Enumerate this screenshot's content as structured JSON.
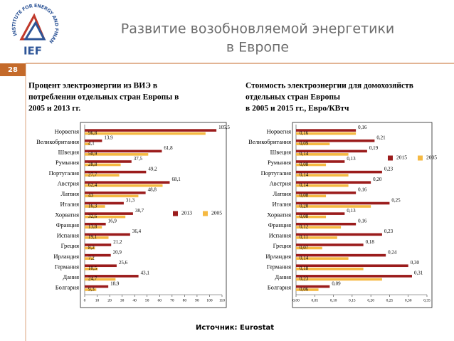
{
  "logo": {
    "name": "IEF",
    "text": "INSTITUTE FOR ENERGY AND FINANCE"
  },
  "title": [
    "Развитие возобновляемой энергетики",
    "в Европе"
  ],
  "slide_number": "28",
  "source": "Источник: Eurostat",
  "chart_data": [
    {
      "type": "bar",
      "orientation": "horizontal",
      "title": [
        "Процент электроэнергии из ВИЭ в",
        "потреблении отдельных стран Европы в",
        "2005 и 2013 гг."
      ],
      "categories": [
        "Норвегия",
        "Великобритания",
        "Швеция",
        "Румыния",
        "Португалия",
        "Австрия",
        "Латвия",
        "Италия",
        "Хорватия",
        "Франция",
        "Испания",
        "Греция",
        "Ирландия",
        "Германия",
        "Дания",
        "Болгария"
      ],
      "series": [
        {
          "name": "2013",
          "color": "#9b1c1c",
          "values": [
            105.5,
            13.9,
            61.8,
            37.5,
            49.2,
            68.1,
            48.8,
            31.3,
            38.7,
            16.9,
            36.4,
            21.2,
            20.9,
            25.6,
            43.1,
            18.9
          ],
          "value_labels": [
            "105,5",
            "13,9",
            "61,8",
            "37,5",
            "49,2",
            "68,1",
            "48,8",
            "31,3",
            "38,7",
            "16,9",
            "36,4",
            "21,2",
            "20,9",
            "25,6",
            "43,1",
            "18,9"
          ]
        },
        {
          "name": "2005",
          "color": "#f5b942",
          "values": [
            96.8,
            4.1,
            50.9,
            28.8,
            27.7,
            62.4,
            43,
            16.3,
            32.6,
            13.8,
            19.1,
            8.2,
            7.2,
            10.5,
            24.7,
            9.3
          ],
          "value_labels": [
            "96,8",
            "4,1",
            "50,9",
            "28,8",
            "27,7",
            "62,4",
            "43",
            "16,3",
            "32,6",
            "13,8",
            "19,1",
            "8,2",
            "7,2",
            "10,5",
            "24,7",
            "9,3"
          ]
        }
      ],
      "xlim": [
        0,
        110
      ],
      "xticks": [
        0,
        10,
        20,
        30,
        40,
        50,
        60,
        70,
        80,
        90,
        100,
        110
      ],
      "legend": "right"
    },
    {
      "type": "bar",
      "orientation": "horizontal",
      "title": [
        "Стоимость электроэнергии для домохозяйств",
        "отдельных стран Европы",
        "в 2005 и 2015 гг., Евро/КВтч"
      ],
      "categories": [
        "Норвегия",
        "Великобритания",
        "Швеция",
        "Румыния",
        "Португалия",
        "Австрия",
        "Латвия",
        "Италия",
        "Хорватия",
        "Франция",
        "Испания",
        "Греция",
        "Ирландия",
        "Германия",
        "Дания",
        "Болгария"
      ],
      "series": [
        {
          "name": "2015",
          "color": "#9b1c1c",
          "values": [
            0.16,
            0.21,
            0.19,
            0.13,
            0.23,
            0.2,
            0.16,
            0.25,
            0.13,
            0.16,
            0.23,
            0.18,
            0.24,
            0.3,
            0.31,
            0.09
          ],
          "value_labels": [
            "0,16",
            "0,21",
            "0,19",
            "0,13",
            "0,23",
            "0,20",
            "0,16",
            "0,25",
            "0,13",
            "0,16",
            "0,23",
            "0,18",
            "0,24",
            "0,30",
            "0,31",
            "0,09"
          ]
        },
        {
          "name": "2005",
          "color": "#f5b942",
          "values": [
            0.16,
            0.09,
            0.14,
            0.08,
            0.14,
            0.14,
            0.08,
            0.2,
            0.08,
            0.12,
            0.11,
            0.07,
            0.14,
            0.18,
            0.23,
            0.06
          ],
          "value_labels": [
            "0,16",
            "0,09",
            "0,14",
            "0,08",
            "0,14",
            "0,14",
            "0,08",
            "0,20",
            "0,08",
            "0,12",
            "0,11",
            "0,07",
            "0,14",
            "0,18",
            "0,23",
            "0,06"
          ]
        }
      ],
      "xlim": [
        0,
        0.35
      ],
      "xticks": [
        {
          "value": 0,
          "label": "0,00"
        },
        {
          "value": 0.05,
          "label": "0,05"
        },
        {
          "value": 0.1,
          "label": "0,10"
        },
        {
          "value": 0.15,
          "label": "0,15"
        },
        {
          "value": 0.2,
          "label": "0,20"
        },
        {
          "value": 0.25,
          "label": "0,25"
        },
        {
          "value": 0.3,
          "label": "0,30"
        },
        {
          "value": 0.35,
          "label": "0,35"
        }
      ],
      "legend": "upper right"
    }
  ]
}
